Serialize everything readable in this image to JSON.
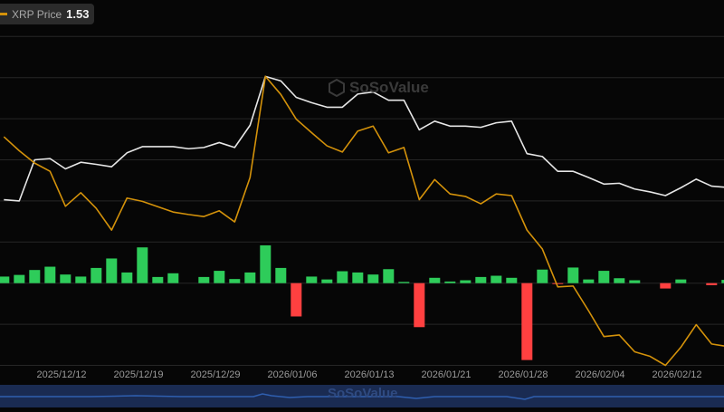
{
  "legend": {
    "label": "XRP Price",
    "value": "1.53",
    "color": "#d4920a"
  },
  "watermark": "SoSoValue",
  "colors": {
    "background": "#060606",
    "grid": "#262626",
    "line_white": "#e6e6e6",
    "line_price": "#d4920a",
    "bar_positive": "#2ecc5a",
    "bar_negative": "#ff4040",
    "navigator": "#1a2b52"
  },
  "chart_data": {
    "type": "line+bar",
    "xlabel": "",
    "ylabel": "",
    "x_tick_labels": [
      "2025/12/12",
      "2025/12/19",
      "2025/12/29",
      "2026/01/06",
      "2026/01/13",
      "2026/01/21",
      "2026/01/28",
      "2026/02/04",
      "2026/02/12"
    ],
    "grid": true,
    "y_tick_labels_shown": false,
    "ylim_relative": [
      0,
      8
    ],
    "series": [
      {
        "type": "line",
        "color": "#e6e6e6",
        "values": [
          4.03,
          4.0,
          5.0,
          5.03,
          4.78,
          4.94,
          4.89,
          4.83,
          5.17,
          5.32,
          5.32,
          5.32,
          5.27,
          5.3,
          5.42,
          5.3,
          5.84,
          7.03,
          6.92,
          6.52,
          6.39,
          6.28,
          6.28,
          6.6,
          6.65,
          6.45,
          6.45,
          5.73,
          5.94,
          5.82,
          5.82,
          5.79,
          5.9,
          5.94,
          5.15,
          5.08,
          4.72,
          4.72,
          4.57,
          4.41,
          4.43,
          4.29,
          4.22,
          4.13,
          4.32,
          4.53,
          4.36,
          4.33
        ]
      },
      {
        "type": "line",
        "name": "XRP Price",
        "color": "#d4920a",
        "values": [
          5.56,
          5.22,
          4.92,
          4.72,
          3.87,
          4.2,
          3.82,
          3.29,
          4.07,
          3.99,
          3.86,
          3.73,
          3.67,
          3.62,
          3.76,
          3.49,
          4.57,
          7.03,
          6.59,
          5.99,
          5.66,
          5.34,
          5.19,
          5.7,
          5.82,
          5.17,
          5.3,
          4.03,
          4.52,
          4.17,
          4.11,
          3.93,
          4.17,
          4.13,
          3.29,
          2.83,
          1.91,
          1.93,
          1.33,
          0.7,
          0.74,
          0.33,
          0.22,
          0.0,
          0.44,
          0.99,
          0.52,
          0.46
        ]
      },
      {
        "type": "bar",
        "baseline": 2,
        "values": [
          0.16,
          0.2,
          0.32,
          0.4,
          0.21,
          0.16,
          0.37,
          0.6,
          0.26,
          0.87,
          0.15,
          0.24,
          0,
          0.15,
          0.3,
          0.1,
          0.26,
          0.92,
          0.37,
          -0.81,
          0.16,
          0.09,
          0.29,
          0.26,
          0.21,
          0.34,
          0.03,
          -1.07,
          0.13,
          0.04,
          0.07,
          0.15,
          0.18,
          0.13,
          -1.87,
          0.33,
          -0.01,
          0.38,
          0.09,
          0.3,
          0.12,
          0.07,
          0,
          -0.13,
          0.09,
          0,
          -0.05,
          0.08
        ]
      }
    ]
  }
}
